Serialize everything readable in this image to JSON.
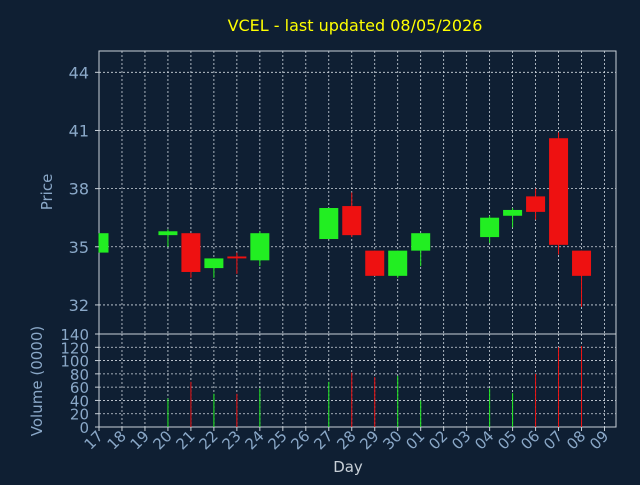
{
  "chart_data": {
    "type": "candlestick",
    "title": "VCEL - last updated 08/05/2026",
    "price_panel": {
      "ylabel": "Price",
      "yticks": [
        32,
        35,
        38,
        41,
        44
      ],
      "ylim": [
        30.5,
        45.1
      ]
    },
    "volume_panel": {
      "ylabel": "Volume (0000)",
      "yticks": [
        0,
        20,
        40,
        60,
        80,
        100,
        120,
        140
      ],
      "ylim": [
        0,
        140
      ]
    },
    "xlabel": "Day",
    "x_tick_labels": [
      "17",
      "18",
      "19",
      "20",
      "21",
      "22",
      "23",
      "24",
      "25",
      "26",
      "27",
      "28",
      "29",
      "30",
      "01",
      "02",
      "03",
      "04",
      "05",
      "06",
      "07",
      "08",
      "09"
    ],
    "candles": [
      {
        "day": "17",
        "open": 34.7,
        "high": 35.7,
        "low": 34.7,
        "close": 35.7,
        "volume": 0
      },
      {
        "day": "20",
        "open": 35.6,
        "high": 35.9,
        "low": 35.0,
        "close": 35.8,
        "volume": 43
      },
      {
        "day": "21",
        "open": 35.7,
        "high": 35.7,
        "low": 33.4,
        "close": 33.7,
        "volume": 68
      },
      {
        "day": "22",
        "open": 33.9,
        "high": 34.4,
        "low": 33.4,
        "close": 34.4,
        "volume": 50
      },
      {
        "day": "23",
        "open": 34.5,
        "high": 34.7,
        "low": 33.6,
        "close": 34.4,
        "volume": 50
      },
      {
        "day": "24",
        "open": 34.3,
        "high": 35.8,
        "low": 34.0,
        "close": 35.7,
        "volume": 58
      },
      {
        "day": "27",
        "open": 35.4,
        "high": 37.0,
        "low": 35.4,
        "close": 37.0,
        "volume": 68
      },
      {
        "day": "28",
        "open": 37.1,
        "high": 37.8,
        "low": 35.5,
        "close": 35.6,
        "volume": 82
      },
      {
        "day": "29",
        "open": 34.8,
        "high": 34.8,
        "low": 33.5,
        "close": 33.5,
        "volume": 75
      },
      {
        "day": "30",
        "open": 33.5,
        "high": 34.8,
        "low": 33.4,
        "close": 34.8,
        "volume": 77
      },
      {
        "day": "01",
        "open": 34.8,
        "high": 35.7,
        "low": 34.0,
        "close": 35.7,
        "volume": 40
      },
      {
        "day": "04",
        "open": 35.5,
        "high": 36.6,
        "low": 35.2,
        "close": 36.5,
        "volume": 58
      },
      {
        "day": "05",
        "open": 36.6,
        "high": 37.0,
        "low": 36.0,
        "close": 36.9,
        "volume": 51
      },
      {
        "day": "06",
        "open": 37.6,
        "high": 38.0,
        "low": 36.4,
        "close": 36.8,
        "volume": 80
      },
      {
        "day": "07",
        "open": 40.6,
        "high": 40.9,
        "low": 34.6,
        "close": 35.1,
        "volume": 120
      },
      {
        "day": "08",
        "open": 34.8,
        "high": 34.8,
        "low": 31.9,
        "close": 33.5,
        "volume": 122
      }
    ],
    "colors": {
      "background": "#0f1f33",
      "up": "#22ee22",
      "down": "#ee1111",
      "title": "#ffff00",
      "axis_text": "#8aa8c8",
      "grid": "#d0d8e0",
      "frame": "#c8d0d8"
    }
  }
}
